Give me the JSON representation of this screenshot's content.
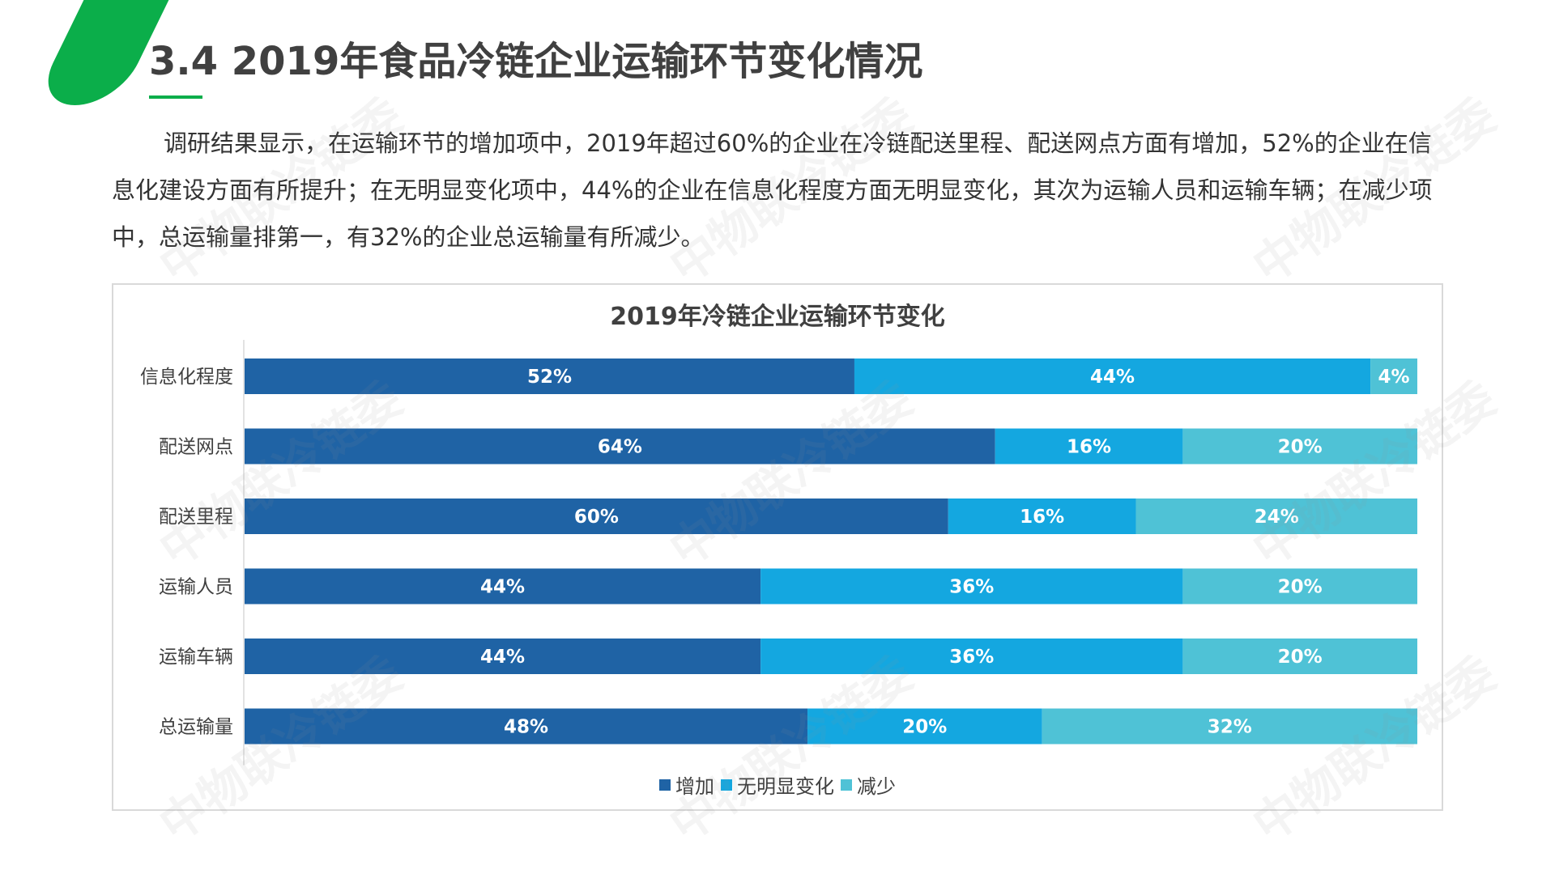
{
  "page": {
    "title": "3.4 2019年食品冷链企业运输环节变化情况",
    "body_text": "调研结果显示，在运输环节的增加项中，2019年超过60%的企业在冷链配送里程、配送网点方面有增加，52%的企业在信息化建设方面有所提升；在无明显变化项中，44%的企业在信息化程度方面无明显变化，其次为运输人员和运输车辆；在减少项中，总运输量排第一，有32%的企业总运输量有所减少。",
    "watermark": "中物联冷链委",
    "accent_color": "#0bae4a"
  },
  "chart_data": {
    "type": "bar",
    "orientation": "horizontal",
    "stacked": true,
    "percent_stacked": true,
    "title": "2019年冷链企业运输环节变化",
    "categories": [
      "信息化程度",
      "配送网点",
      "配送里程",
      "运输人员",
      "运输车辆",
      "总运输量"
    ],
    "series": [
      {
        "name": "增加",
        "color": "#1f63a5",
        "values": [
          52,
          64,
          60,
          44,
          44,
          48
        ],
        "labels": [
          "52%",
          "64%",
          "60%",
          "44%",
          "44%",
          "48%"
        ]
      },
      {
        "name": "无明显变化",
        "color": "#14a7e0",
        "values": [
          44,
          16,
          16,
          36,
          36,
          20
        ],
        "labels": [
          "44%",
          "16%",
          "16%",
          "36%",
          "36%",
          "20%"
        ]
      },
      {
        "name": "减少",
        "color": "#4fc2d6",
        "values": [
          4,
          20,
          24,
          20,
          20,
          32
        ],
        "labels": [
          "4%",
          "20%",
          "24%",
          "20%",
          "20%",
          "32%"
        ]
      }
    ],
    "xlim": [
      0,
      100
    ],
    "grid": false,
    "legend_position": "bottom"
  }
}
